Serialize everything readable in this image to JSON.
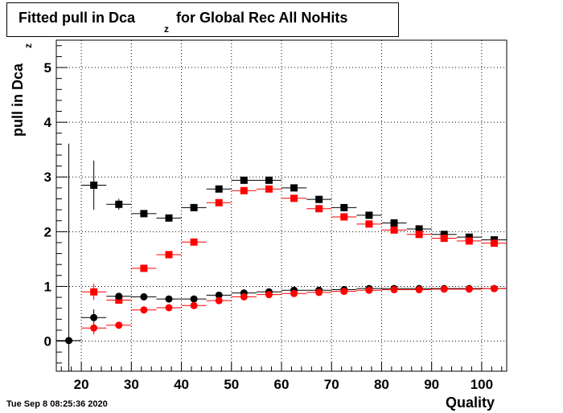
{
  "title": {
    "main": "Fitted pull in Dca",
    "sub": "z",
    "rest": " for Global Rec All NoHits"
  },
  "ylabel": {
    "main": "pull in Dca",
    "sub": "z"
  },
  "xlabel": "Quality",
  "timestamp": "Tue Sep  8 08:25:36 2020",
  "chart_data": {
    "type": "scatter",
    "xlim": [
      15,
      105
    ],
    "ylim": [
      -0.55,
      5.5
    ],
    "grid": true,
    "x_ticks": [
      20,
      30,
      40,
      50,
      60,
      70,
      80,
      90,
      100
    ],
    "y_ticks": [
      0,
      1,
      2,
      3,
      4,
      5
    ],
    "series": [
      {
        "marker": "square",
        "color": "#000000",
        "points": [
          {
            "x": 22.5,
            "y": 2.85,
            "err": 0.45
          },
          {
            "x": 27.5,
            "y": 2.5,
            "err": 0.1
          },
          {
            "x": 32.5,
            "y": 2.33,
            "err": 0.05
          },
          {
            "x": 37.5,
            "y": 2.25,
            "err": 0.04
          },
          {
            "x": 42.5,
            "y": 2.44,
            "err": 0.04
          },
          {
            "x": 47.5,
            "y": 2.78,
            "err": 0.04
          },
          {
            "x": 52.5,
            "y": 2.94,
            "err": 0.04
          },
          {
            "x": 57.5,
            "y": 2.94,
            "err": 0.04
          },
          {
            "x": 62.5,
            "y": 2.8,
            "err": 0.04
          },
          {
            "x": 67.5,
            "y": 2.59,
            "err": 0.04
          },
          {
            "x": 72.5,
            "y": 2.44,
            "err": 0.03
          },
          {
            "x": 77.5,
            "y": 2.3,
            "err": 0.03
          },
          {
            "x": 82.5,
            "y": 2.16,
            "err": 0.03
          },
          {
            "x": 87.5,
            "y": 2.05,
            "err": 0.03
          },
          {
            "x": 92.5,
            "y": 1.95,
            "err": 0.03
          },
          {
            "x": 97.5,
            "y": 1.9,
            "err": 0.03
          },
          {
            "x": 102.5,
            "y": 1.85,
            "err": 0.03
          }
        ]
      },
      {
        "marker": "square",
        "color": "#ff0000",
        "points": [
          {
            "x": 22.5,
            "y": 0.9,
            "err": 0.15
          },
          {
            "x": 27.5,
            "y": 0.75,
            "err": 0.05
          },
          {
            "x": 32.5,
            "y": 1.33,
            "err": 0.03
          },
          {
            "x": 37.5,
            "y": 1.58,
            "err": 0.03
          },
          {
            "x": 42.5,
            "y": 1.81,
            "err": 0.03
          },
          {
            "x": 47.5,
            "y": 2.53,
            "err": 0.03
          },
          {
            "x": 52.5,
            "y": 2.75,
            "err": 0.03
          },
          {
            "x": 57.5,
            "y": 2.78,
            "err": 0.03
          },
          {
            "x": 62.5,
            "y": 2.61,
            "err": 0.03
          },
          {
            "x": 67.5,
            "y": 2.42,
            "err": 0.03
          },
          {
            "x": 72.5,
            "y": 2.27,
            "err": 0.03
          },
          {
            "x": 77.5,
            "y": 2.14,
            "err": 0.03
          },
          {
            "x": 82.5,
            "y": 2.03,
            "err": 0.03
          },
          {
            "x": 87.5,
            "y": 1.95,
            "err": 0.03
          },
          {
            "x": 92.5,
            "y": 1.88,
            "err": 0.03
          },
          {
            "x": 97.5,
            "y": 1.83,
            "err": 0.03
          },
          {
            "x": 102.5,
            "y": 1.79,
            "err": 0.03
          }
        ]
      },
      {
        "marker": "circle",
        "color": "#000000",
        "points": [
          {
            "x": 17.5,
            "y": 0.01,
            "err": 3.6
          },
          {
            "x": 22.5,
            "y": 0.43,
            "err": 0.15
          },
          {
            "x": 27.5,
            "y": 0.82,
            "err": 0.05
          },
          {
            "x": 32.5,
            "y": 0.81,
            "err": 0.03
          },
          {
            "x": 37.5,
            "y": 0.77,
            "err": 0.03
          },
          {
            "x": 42.5,
            "y": 0.77,
            "err": 0.03
          },
          {
            "x": 47.5,
            "y": 0.84,
            "err": 0.02
          },
          {
            "x": 52.5,
            "y": 0.88,
            "err": 0.02
          },
          {
            "x": 57.5,
            "y": 0.9,
            "err": 0.02
          },
          {
            "x": 62.5,
            "y": 0.93,
            "err": 0.02
          },
          {
            "x": 67.5,
            "y": 0.93,
            "err": 0.02
          },
          {
            "x": 72.5,
            "y": 0.94,
            "err": 0.02
          },
          {
            "x": 77.5,
            "y": 0.96,
            "err": 0.02
          },
          {
            "x": 82.5,
            "y": 0.96,
            "err": 0.02
          },
          {
            "x": 87.5,
            "y": 0.96,
            "err": 0.02
          },
          {
            "x": 92.5,
            "y": 0.96,
            "err": 0.02
          },
          {
            "x": 97.5,
            "y": 0.96,
            "err": 0.02
          },
          {
            "x": 102.5,
            "y": 0.96,
            "err": 0.02
          }
        ]
      },
      {
        "marker": "circle",
        "color": "#ff0000",
        "points": [
          {
            "x": 22.5,
            "y": 0.24,
            "err": 0.12
          },
          {
            "x": 27.5,
            "y": 0.29,
            "err": 0.04
          },
          {
            "x": 32.5,
            "y": 0.57,
            "err": 0.03
          },
          {
            "x": 37.5,
            "y": 0.61,
            "err": 0.03
          },
          {
            "x": 42.5,
            "y": 0.65,
            "err": 0.02
          },
          {
            "x": 47.5,
            "y": 0.74,
            "err": 0.02
          },
          {
            "x": 52.5,
            "y": 0.81,
            "err": 0.02
          },
          {
            "x": 57.5,
            "y": 0.85,
            "err": 0.02
          },
          {
            "x": 62.5,
            "y": 0.87,
            "err": 0.02
          },
          {
            "x": 67.5,
            "y": 0.89,
            "err": 0.02
          },
          {
            "x": 72.5,
            "y": 0.91,
            "err": 0.02
          },
          {
            "x": 77.5,
            "y": 0.93,
            "err": 0.02
          },
          {
            "x": 82.5,
            "y": 0.94,
            "err": 0.02
          },
          {
            "x": 87.5,
            "y": 0.94,
            "err": 0.02
          },
          {
            "x": 92.5,
            "y": 0.95,
            "err": 0.02
          },
          {
            "x": 97.5,
            "y": 0.95,
            "err": 0.02
          },
          {
            "x": 102.5,
            "y": 0.96,
            "err": 0.02
          }
        ]
      }
    ]
  }
}
